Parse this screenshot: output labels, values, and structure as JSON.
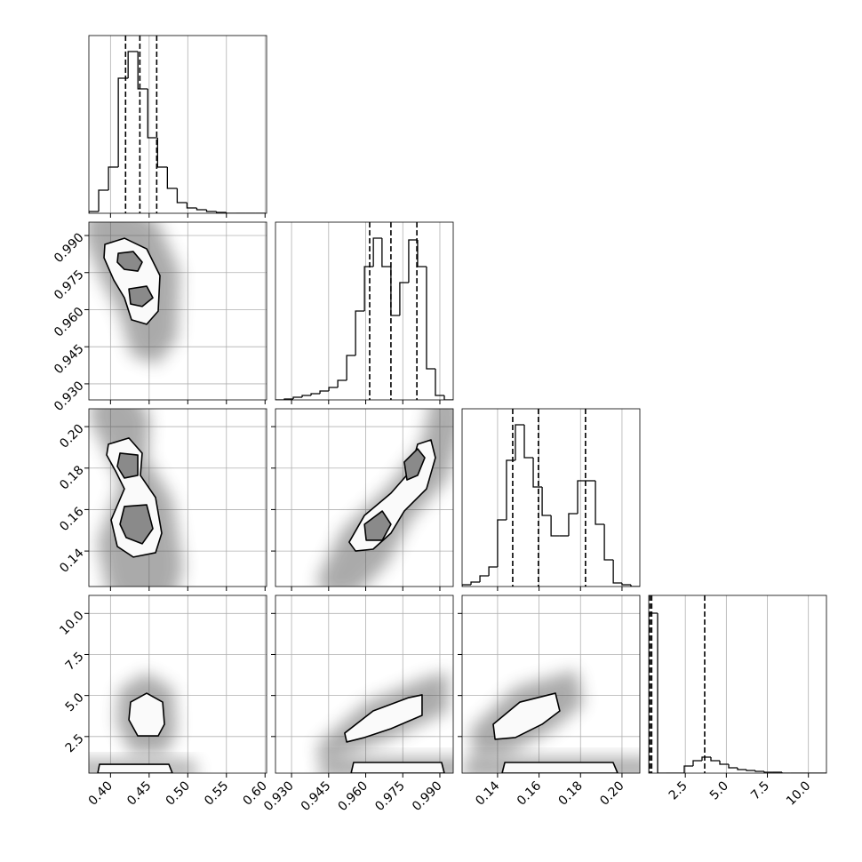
{
  "chart_data": [
    {
      "type": "histogram",
      "xlim": [
        0.372,
        0.602
      ],
      "xticks": [
        0.4,
        0.45,
        0.5,
        0.55,
        0.6
      ],
      "ylim": [
        0,
        200
      ],
      "color": "#000000",
      "bins": [
        0.372,
        0.3847,
        0.3974,
        0.4101,
        0.4228,
        0.4355,
        0.4482,
        0.4609,
        0.4736,
        0.4863,
        0.499,
        0.5117,
        0.5244,
        0.5371,
        0.5498,
        0.5625,
        0.5752,
        0.5879,
        0.6006
      ],
      "values": [
        2,
        26,
        52,
        152,
        182,
        140,
        85,
        52,
        28,
        12,
        6,
        4,
        2,
        1,
        0,
        0,
        0,
        0
      ],
      "quantiles": [
        0.4195,
        0.438,
        0.4598
      ]
    },
    {
      "type": "contour",
      "xlim": [
        0.372,
        0.602
      ],
      "xticks": [
        0.4,
        0.45,
        0.5,
        0.55,
        0.6
      ],
      "ylim": [
        0.9235,
        0.9954
      ],
      "yticks": [
        {
          "value": 0.93,
          "label": "0.930"
        },
        {
          "value": 0.945,
          "label": "0.945"
        },
        {
          "value": 0.96,
          "label": "0.960"
        },
        {
          "value": 0.975,
          "label": "0.975"
        },
        {
          "value": 0.99,
          "label": "0.990"
        }
      ],
      "color": "#000000",
      "contours": [
        {
          "x": [
            0.3927,
            0.418,
            0.4468,
            0.464,
            0.4617,
            0.4468,
            0.4272,
            0.418,
            0.4042,
            0.3916
          ],
          "y": [
            0.9864,
            0.9889,
            0.9846,
            0.9738,
            0.9594,
            0.9541,
            0.9559,
            0.9648,
            0.972,
            0.981
          ]
        },
        {
          "x": [
            0.41,
            0.4295,
            0.441,
            0.4353,
            0.418,
            0.4088
          ],
          "y": [
            0.9828,
            0.9835,
            0.9792,
            0.9756,
            0.9763,
            0.9792
          ]
        },
        {
          "x": [
            0.4238,
            0.4468,
            0.4548,
            0.441,
            0.426
          ],
          "y": [
            0.9684,
            0.9695,
            0.9648,
            0.9613,
            0.9623
          ]
        }
      ]
    },
    {
      "type": "histogram",
      "xlim": [
        0.9235,
        0.9954
      ],
      "xticks": [
        0.93,
        0.945,
        0.96,
        0.975,
        0.99
      ],
      "ylim": [
        0,
        200
      ],
      "color": "#000000",
      "bins": [
        0.9235,
        0.9271,
        0.9307,
        0.9343,
        0.9379,
        0.9415,
        0.9451,
        0.9487,
        0.9523,
        0.9559,
        0.9595,
        0.9631,
        0.9666,
        0.9702,
        0.9738,
        0.9774,
        0.981,
        0.9846,
        0.9882,
        0.9918,
        0.9954
      ],
      "values": [
        0,
        1,
        3,
        5,
        7,
        10,
        14,
        22,
        50,
        100,
        150,
        182,
        150,
        95,
        132,
        180,
        150,
        35,
        5,
        0
      ],
      "quantiles": [
        0.9616,
        0.9702,
        0.9807
      ]
    },
    {
      "type": "contour",
      "xlim": [
        0.372,
        0.602
      ],
      "xticks": [
        0.4,
        0.45,
        0.5,
        0.55,
        0.6
      ],
      "ylim": [
        0.1229,
        0.2086
      ],
      "yticks": [
        0.14,
        0.16,
        0.18,
        {
          "value": 0.2,
          "label": "0.20"
        }
      ],
      "color": "#000000",
      "contours": [
        {
          "x": [
            0.3973,
            0.4238,
            0.441,
            0.4387,
            0.4583,
            0.4663,
            0.4583,
            0.4295,
            0.4088,
            0.4008,
            0.418,
            0.4065,
            0.395
          ],
          "y": [
            0.1915,
            0.1945,
            0.1872,
            0.1765,
            0.1658,
            0.1486,
            0.1392,
            0.1371,
            0.1422,
            0.155,
            0.17,
            0.1786,
            0.1863
          ]
        },
        {
          "x": [
            0.4123,
            0.4353,
            0.4353,
            0.418,
            0.4088
          ],
          "y": [
            0.1872,
            0.1863,
            0.1765,
            0.1752,
            0.1808
          ]
        },
        {
          "x": [
            0.418,
            0.4468,
            0.4548,
            0.441,
            0.4203,
            0.4123
          ],
          "y": [
            0.1615,
            0.1623,
            0.1508,
            0.1435,
            0.1465,
            0.1529
          ]
        }
      ]
    },
    {
      "type": "contour",
      "xlim": [
        0.9235,
        0.9954
      ],
      "xticks": [
        0.93,
        0.945,
        0.96,
        0.975,
        0.99
      ],
      "ylim": [
        0.1229,
        0.2086
      ],
      "yticks": [
        0.14,
        0.16,
        0.18,
        0.2
      ],
      "color": "#000000",
      "contours": [
        {
          "x": [
            0.9533,
            0.9595,
            0.9702,
            0.9781,
            0.981,
            0.9864,
            0.9882,
            0.9846,
            0.9756,
            0.9702,
            0.963,
            0.9559
          ],
          "y": [
            0.1443,
            0.1572,
            0.1679,
            0.1786,
            0.1915,
            0.1936,
            0.185,
            0.17,
            0.1593,
            0.1486,
            0.1409,
            0.14
          ]
        },
        {
          "x": [
            0.9595,
            0.9667,
            0.9702,
            0.9667,
            0.9602
          ],
          "y": [
            0.1529,
            0.1593,
            0.1529,
            0.1452,
            0.1452
          ]
        },
        {
          "x": [
            0.9756,
            0.981,
            0.9839,
            0.981,
            0.9767
          ],
          "y": [
            0.1829,
            0.1893,
            0.185,
            0.1765,
            0.1743
          ]
        }
      ]
    },
    {
      "type": "histogram",
      "xlim": [
        0.1229,
        0.2086
      ],
      "xticks": [
        0.14,
        0.16,
        0.18,
        0.2
      ],
      "ylim": [
        0,
        200
      ],
      "color": "#000000",
      "bins": [
        0.1229,
        0.1272,
        0.1315,
        0.1358,
        0.14,
        0.1443,
        0.1486,
        0.1529,
        0.1572,
        0.1615,
        0.1658,
        0.17,
        0.1743,
        0.1786,
        0.1829,
        0.1872,
        0.1915,
        0.1958,
        0.2,
        0.2043,
        0.2086
      ],
      "values": [
        2,
        5,
        12,
        22,
        75,
        142,
        182,
        145,
        112,
        80,
        57,
        57,
        82,
        119,
        119,
        70,
        30,
        4,
        2,
        0
      ],
      "quantiles": [
        0.1473,
        0.1597,
        0.1824
      ]
    },
    {
      "type": "contour",
      "xlim": [
        0.372,
        0.602
      ],
      "xticks": [
        {
          "value": 0.4,
          "label": "0.40"
        },
        0.45,
        {
          "value": 0.5,
          "label": "0.50"
        },
        0.55,
        {
          "value": 0.6,
          "label": "0.60"
        }
      ],
      "ylim": [
        0.27,
        11.1
      ],
      "yticks": [
        2.5,
        {
          "value": 5,
          "label": "5.0"
        },
        7.5,
        {
          "value": 10,
          "label": "10.0"
        }
      ],
      "color": "#000000",
      "contours": [
        {
          "x": [
            0.426,
            0.4468,
            0.4675,
            0.4698,
            0.4617,
            0.4353,
            0.4238
          ],
          "y": [
            4.6,
            5.14,
            4.6,
            3.25,
            2.54,
            2.54,
            3.52
          ]
        },
        {
          "x": [
            0.3835,
            0.3858,
            0.4755,
            0.4801
          ],
          "y": [
            0.27,
            0.81,
            0.81,
            0.27
          ]
        }
      ]
    },
    {
      "type": "contour",
      "xlim": [
        0.9235,
        0.9954
      ],
      "xticks": [
        {
          "value": 0.93,
          "label": "0.930"
        },
        {
          "value": 0.945,
          "label": "0.945"
        },
        {
          "value": 0.96,
          "label": "0.960"
        },
        {
          "value": 0.975,
          "label": "0.975"
        },
        {
          "value": 0.99,
          "label": "0.990"
        }
      ],
      "ylim": [
        0.27,
        11.1
      ],
      "yticks": [
        2.5,
        5,
        7.5,
        10
      ],
      "color": "#000000",
      "contours": [
        {
          "x": [
            0.9515,
            0.963,
            0.9774,
            0.9828,
            0.9828,
            0.9702,
            0.9595,
            0.9523
          ],
          "y": [
            2.71,
            4.06,
            4.87,
            5.04,
            3.79,
            2.98,
            2.44,
            2.17
          ]
        },
        {
          "x": [
            0.9541,
            0.9551,
            0.9907,
            0.9918
          ],
          "y": [
            0.27,
            0.92,
            0.92,
            0.27
          ]
        }
      ]
    },
    {
      "type": "contour",
      "xlim": [
        0.1229,
        0.2086
      ],
      "xticks": [
        0.14,
        0.16,
        0.18,
        {
          "value": 0.2,
          "label": "0.20"
        }
      ],
      "ylim": [
        0.27,
        11.1
      ],
      "yticks": [
        2.5,
        5,
        7.5,
        10
      ],
      "color": "#000000",
      "contours": [
        {
          "x": [
            0.1379,
            0.1508,
            0.1679,
            0.17,
            0.1615,
            0.1486,
            0.1388
          ],
          "y": [
            3.25,
            4.6,
            5.14,
            4.06,
            3.25,
            2.44,
            2.33
          ]
        },
        {
          "x": [
            0.1422,
            0.1435,
            0.1957,
            0.1979
          ],
          "y": [
            0.27,
            0.92,
            0.92,
            0.27
          ]
        }
      ]
    },
    {
      "type": "histogram",
      "xlim": [
        0.27,
        11.1
      ],
      "xticks": [
        2.5,
        {
          "value": 5,
          "label": "5.0"
        },
        7.5,
        {
          "value": 10,
          "label": "10.0"
        }
      ],
      "ylim": [
        0,
        200
      ],
      "color": "#000000",
      "bins": [
        0.27,
        0.8115,
        1.353,
        1.8945,
        2.436,
        2.9775,
        3.519,
        4.0605,
        4.602,
        5.1435,
        5.685,
        6.2265,
        6.768,
        7.3095,
        7.851,
        8.3925,
        8.934,
        9.4755,
        10.017,
        10.5585,
        11.1
      ],
      "values": [
        180,
        0,
        0,
        0,
        8,
        14,
        18,
        14,
        10,
        6,
        4,
        3,
        2,
        1,
        1,
        0,
        0,
        0,
        0,
        0
      ],
      "quantiles": [
        0.35,
        0.45,
        3.68
      ]
    }
  ]
}
